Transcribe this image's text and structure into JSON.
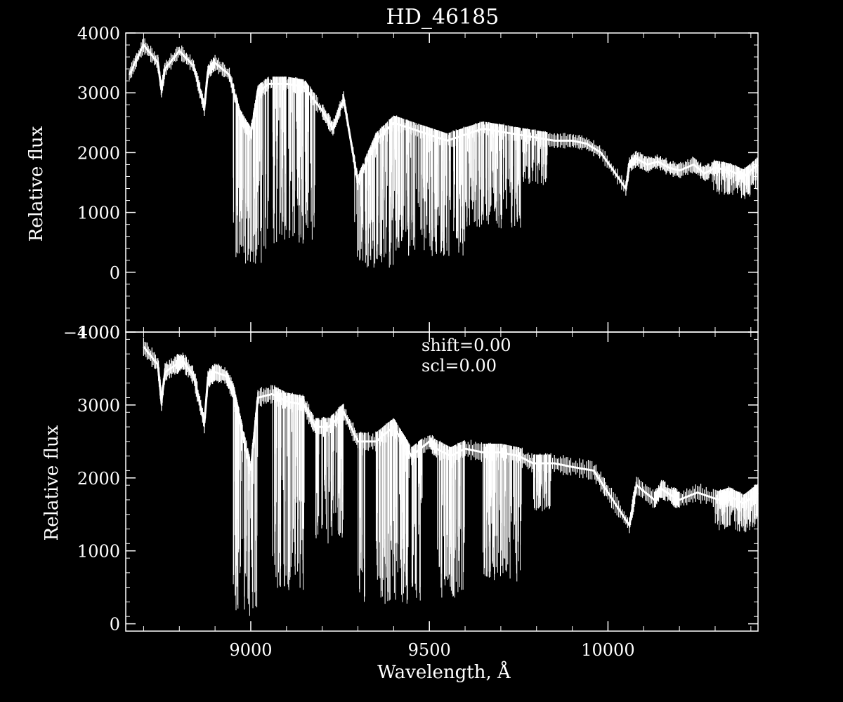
{
  "colors": {
    "background": "#000000",
    "foreground": "#ffffff"
  },
  "chart_data": [
    {
      "type": "line",
      "title": "HD_46185",
      "ylabel": "Relative flux",
      "xlabel": "",
      "xlim": [
        8650,
        10420
      ],
      "ylim": [
        -1000,
        4000
      ],
      "x_ticks": [
        9000,
        9500,
        10000
      ],
      "y_ticks": [
        -1000,
        0,
        1000,
        2000,
        3000,
        4000
      ],
      "y_tick_labels": [
        "−1000",
        "0",
        "1000",
        "2000",
        "3000",
        "4000"
      ],
      "grid": false,
      "series": [
        {
          "x": [
            8660,
            8700,
            8740,
            8750,
            8760,
            8800,
            8840,
            8870,
            8880,
            8900,
            8940,
            8970,
            9000,
            9020,
            9050,
            9100,
            9150,
            9200,
            9230,
            9260,
            9300,
            9350,
            9400,
            9450,
            9500,
            9550,
            9600,
            9650,
            9700,
            9750,
            9800,
            9850,
            9900,
            9940,
            9980,
            10050,
            10060,
            10080,
            10110,
            10140,
            10170,
            10200,
            10240,
            10270,
            10300,
            10340,
            10380,
            10420
          ],
          "y": [
            3300,
            3800,
            3500,
            3050,
            3400,
            3700,
            3450,
            2750,
            3350,
            3500,
            3300,
            2600,
            2300,
            3000,
            3150,
            3150,
            3100,
            2700,
            2400,
            2900,
            1500,
            2200,
            2500,
            2400,
            2300,
            2200,
            2300,
            2400,
            2350,
            2300,
            2250,
            2200,
            2200,
            2150,
            2000,
            1400,
            1800,
            1900,
            1800,
            1850,
            1750,
            1700,
            1800,
            1650,
            1750,
            1700,
            1600,
            1800
          ]
        }
      ]
    },
    {
      "type": "line",
      "title": "",
      "ylabel": "Relative flux",
      "xlabel": "Wavelength, Å",
      "xlim": [
        8650,
        10420
      ],
      "ylim": [
        -100,
        4000
      ],
      "x_ticks": [
        9000,
        9500,
        10000
      ],
      "x_tick_labels": [
        "9000",
        "9500",
        "10000"
      ],
      "y_ticks": [
        0,
        1000,
        2000,
        3000,
        4000
      ],
      "y_tick_labels": [
        "0",
        "1000",
        "2000",
        "3000",
        "4000"
      ],
      "grid": false,
      "annotations": [
        "shift=0.00",
        "scl=0.00"
      ],
      "series": [
        {
          "x": [
            8700,
            8740,
            8750,
            8760,
            8790,
            8810,
            8840,
            8870,
            8880,
            8900,
            8930,
            8950,
            9000,
            9020,
            9060,
            9100,
            9150,
            9180,
            9220,
            9260,
            9300,
            9350,
            9400,
            9450,
            9500,
            9520,
            9560,
            9600,
            9650,
            9700,
            9750,
            9790,
            9850,
            9900,
            9960,
            10000,
            10060,
            10080,
            10130,
            10150,
            10180,
            10200,
            10250,
            10310,
            10340,
            10380,
            10420
          ],
          "y": [
            3800,
            3550,
            3050,
            3450,
            3550,
            3600,
            3400,
            2750,
            3350,
            3450,
            3400,
            3200,
            2100,
            3100,
            3150,
            3050,
            3000,
            2700,
            2700,
            2900,
            2500,
            2500,
            2700,
            2300,
            2500,
            2400,
            2300,
            2400,
            2350,
            2350,
            2300,
            2200,
            2200,
            2150,
            2100,
            1800,
            1350,
            1900,
            1700,
            1850,
            1750,
            1700,
            1800,
            1700,
            1750,
            1650,
            1800
          ]
        }
      ]
    }
  ]
}
